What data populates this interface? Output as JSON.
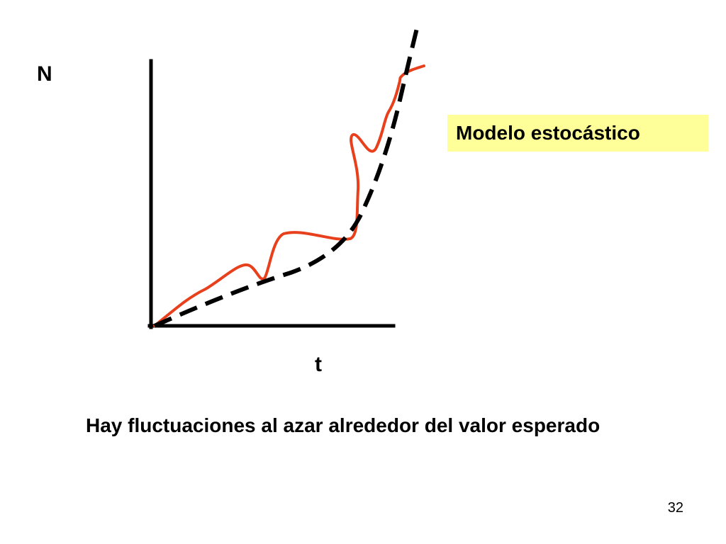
{
  "diagram": {
    "y_axis_label": "N",
    "x_axis_label": "t",
    "legend_label": "Modelo estocástico",
    "caption": "Hay fluctuaciones al azar alrededor del valor esperado",
    "slide_number": "32",
    "colors": {
      "stochastic_curve": "#e8401c",
      "expected_curve": "#000000",
      "axes": "#000000",
      "legend_background": "#ffff99"
    }
  }
}
